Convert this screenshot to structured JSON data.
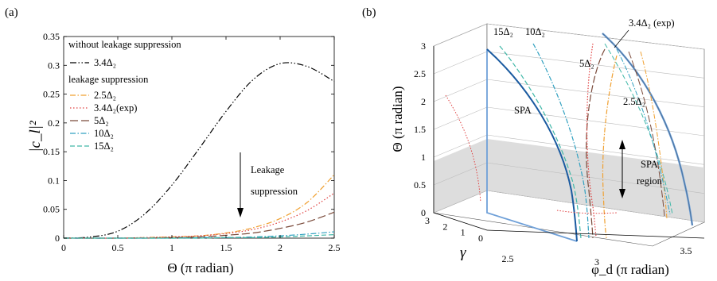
{
  "chart_data": [
    {
      "panel": "(a)",
      "type": "line",
      "xlabel": "Θ (π radian)",
      "ylabel": "|c_l|²",
      "xlim": [
        0,
        2.5
      ],
      "ylim": [
        0,
        0.35
      ],
      "x_ticks": [
        "0",
        "0.5",
        "1",
        "1.5",
        "2",
        "2.5"
      ],
      "y_ticks": [
        "0",
        "0.05",
        "0.1",
        "0.15",
        "0.2",
        "0.25",
        "0.3",
        "0.35"
      ],
      "legend_group_1": "without leakage suppression",
      "legend_group_2": "leakage suppression",
      "annotation": "Leakage suppression",
      "x": [
        0,
        0.25,
        0.5,
        0.75,
        1.0,
        1.25,
        1.5,
        1.75,
        2.0,
        2.25,
        2.5
      ],
      "series": [
        {
          "name": "3.4Δ₂",
          "color": "#000000",
          "dash": "dashdotdot",
          "group": 1,
          "values": [
            0,
            0.002,
            0.012,
            0.042,
            0.092,
            0.155,
            0.22,
            0.275,
            0.303,
            0.298,
            0.272
          ]
        },
        {
          "name": "2.5Δ₂",
          "color": "#f0a030",
          "dash": "dashdot",
          "group": 2,
          "values": [
            0,
            0,
            0,
            0.001,
            0.002,
            0.004,
            0.009,
            0.018,
            0.034,
            0.062,
            0.11
          ]
        },
        {
          "name": "3.4Δ₂(exp)",
          "color": "#e04040",
          "dash": "dot",
          "group": 2,
          "values": [
            0,
            0,
            0,
            0.001,
            0.002,
            0.004,
            0.008,
            0.015,
            0.028,
            0.048,
            0.078
          ]
        },
        {
          "name": "5Δ₂",
          "color": "#7a4a3a",
          "dash": "longdash",
          "group": 2,
          "values": [
            0,
            0,
            0,
            0,
            0.001,
            0.002,
            0.005,
            0.009,
            0.017,
            0.028,
            0.045
          ]
        },
        {
          "name": "10Δ₂",
          "color": "#30a0c0",
          "dash": "dashdot",
          "group": 2,
          "values": [
            0,
            0,
            0,
            0,
            0,
            0.001,
            0.001,
            0.002,
            0.004,
            0.007,
            0.011
          ]
        },
        {
          "name": "15Δ₂",
          "color": "#40b8a8",
          "dash": "dash",
          "group": 2,
          "values": [
            0,
            0,
            0,
            0,
            0,
            0,
            0.001,
            0.001,
            0.002,
            0.004,
            0.006
          ]
        }
      ]
    },
    {
      "panel": "(b)",
      "type": "line",
      "projection": "3d",
      "xlabel": "φ_d (π radian)",
      "ylabel": "γ",
      "zlabel": "Θ (π radian)",
      "x_ticks": [
        "2.5",
        "3",
        "3.5"
      ],
      "y_ticks": [
        "0",
        "1",
        "2",
        "3"
      ],
      "z_ticks": [
        "0",
        "0.5",
        "1",
        "1.5",
        "2",
        "2.5",
        "3"
      ],
      "region": {
        "label_1": "SPA",
        "label_2": "region",
        "z_range": [
          0,
          1
        ]
      },
      "curve_labels": [
        "15Δ₂",
        "10Δ₂",
        "5Δ₂",
        "3.4Δ₂ (exp)",
        "2.5Δ₂",
        "SPA"
      ],
      "series": [
        {
          "name": "SPA",
          "color": "#1a5aa0",
          "dash": "solid"
        },
        {
          "name": "15Δ₂",
          "color": "#40b8a8",
          "dash": "dash"
        },
        {
          "name": "10Δ₂",
          "color": "#30a0c0",
          "dash": "dashdot"
        },
        {
          "name": "5Δ₂",
          "color": "#7a4a3a",
          "dash": "longdash"
        },
        {
          "name": "3.4Δ₂ (exp)",
          "color": "#e04040",
          "dash": "dot"
        },
        {
          "name": "2.5Δ₂",
          "color": "#f0a030",
          "dash": "dashdot"
        }
      ]
    }
  ]
}
